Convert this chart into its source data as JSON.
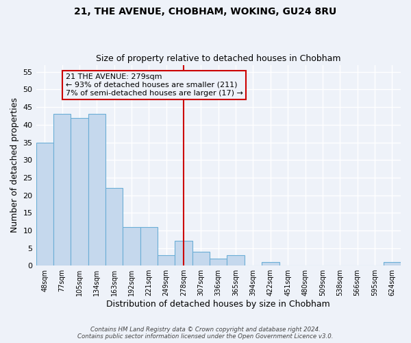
{
  "title": "21, THE AVENUE, CHOBHAM, WOKING, GU24 8RU",
  "subtitle": "Size of property relative to detached houses in Chobham",
  "xlabel": "Distribution of detached houses by size in Chobham",
  "ylabel": "Number of detached properties",
  "bin_labels": [
    "48sqm",
    "77sqm",
    "105sqm",
    "134sqm",
    "163sqm",
    "192sqm",
    "221sqm",
    "249sqm",
    "278sqm",
    "307sqm",
    "336sqm",
    "365sqm",
    "394sqm",
    "422sqm",
    "451sqm",
    "480sqm",
    "509sqm",
    "538sqm",
    "566sqm",
    "595sqm",
    "624sqm"
  ],
  "bin_values": [
    35,
    43,
    42,
    43,
    22,
    11,
    11,
    3,
    7,
    4,
    2,
    3,
    0,
    1,
    0,
    0,
    0,
    0,
    0,
    0,
    1
  ],
  "bar_color": "#c5d8ed",
  "bar_edge_color": "#6baed6",
  "property_line_x": 8,
  "ylim": [
    0,
    57
  ],
  "yticks": [
    0,
    5,
    10,
    15,
    20,
    25,
    30,
    35,
    40,
    45,
    50,
    55
  ],
  "annotation_title": "21 THE AVENUE: 279sqm",
  "annotation_line1": "← 93% of detached houses are smaller (211)",
  "annotation_line2": "7% of semi-detached houses are larger (17) →",
  "annotation_box_color": "#cc0000",
  "property_line_color": "#cc0000",
  "footer_line1": "Contains HM Land Registry data © Crown copyright and database right 2024.",
  "footer_line2": "Contains public sector information licensed under the Open Government Licence v3.0.",
  "background_color": "#eef2f9",
  "grid_color": "#ffffff"
}
